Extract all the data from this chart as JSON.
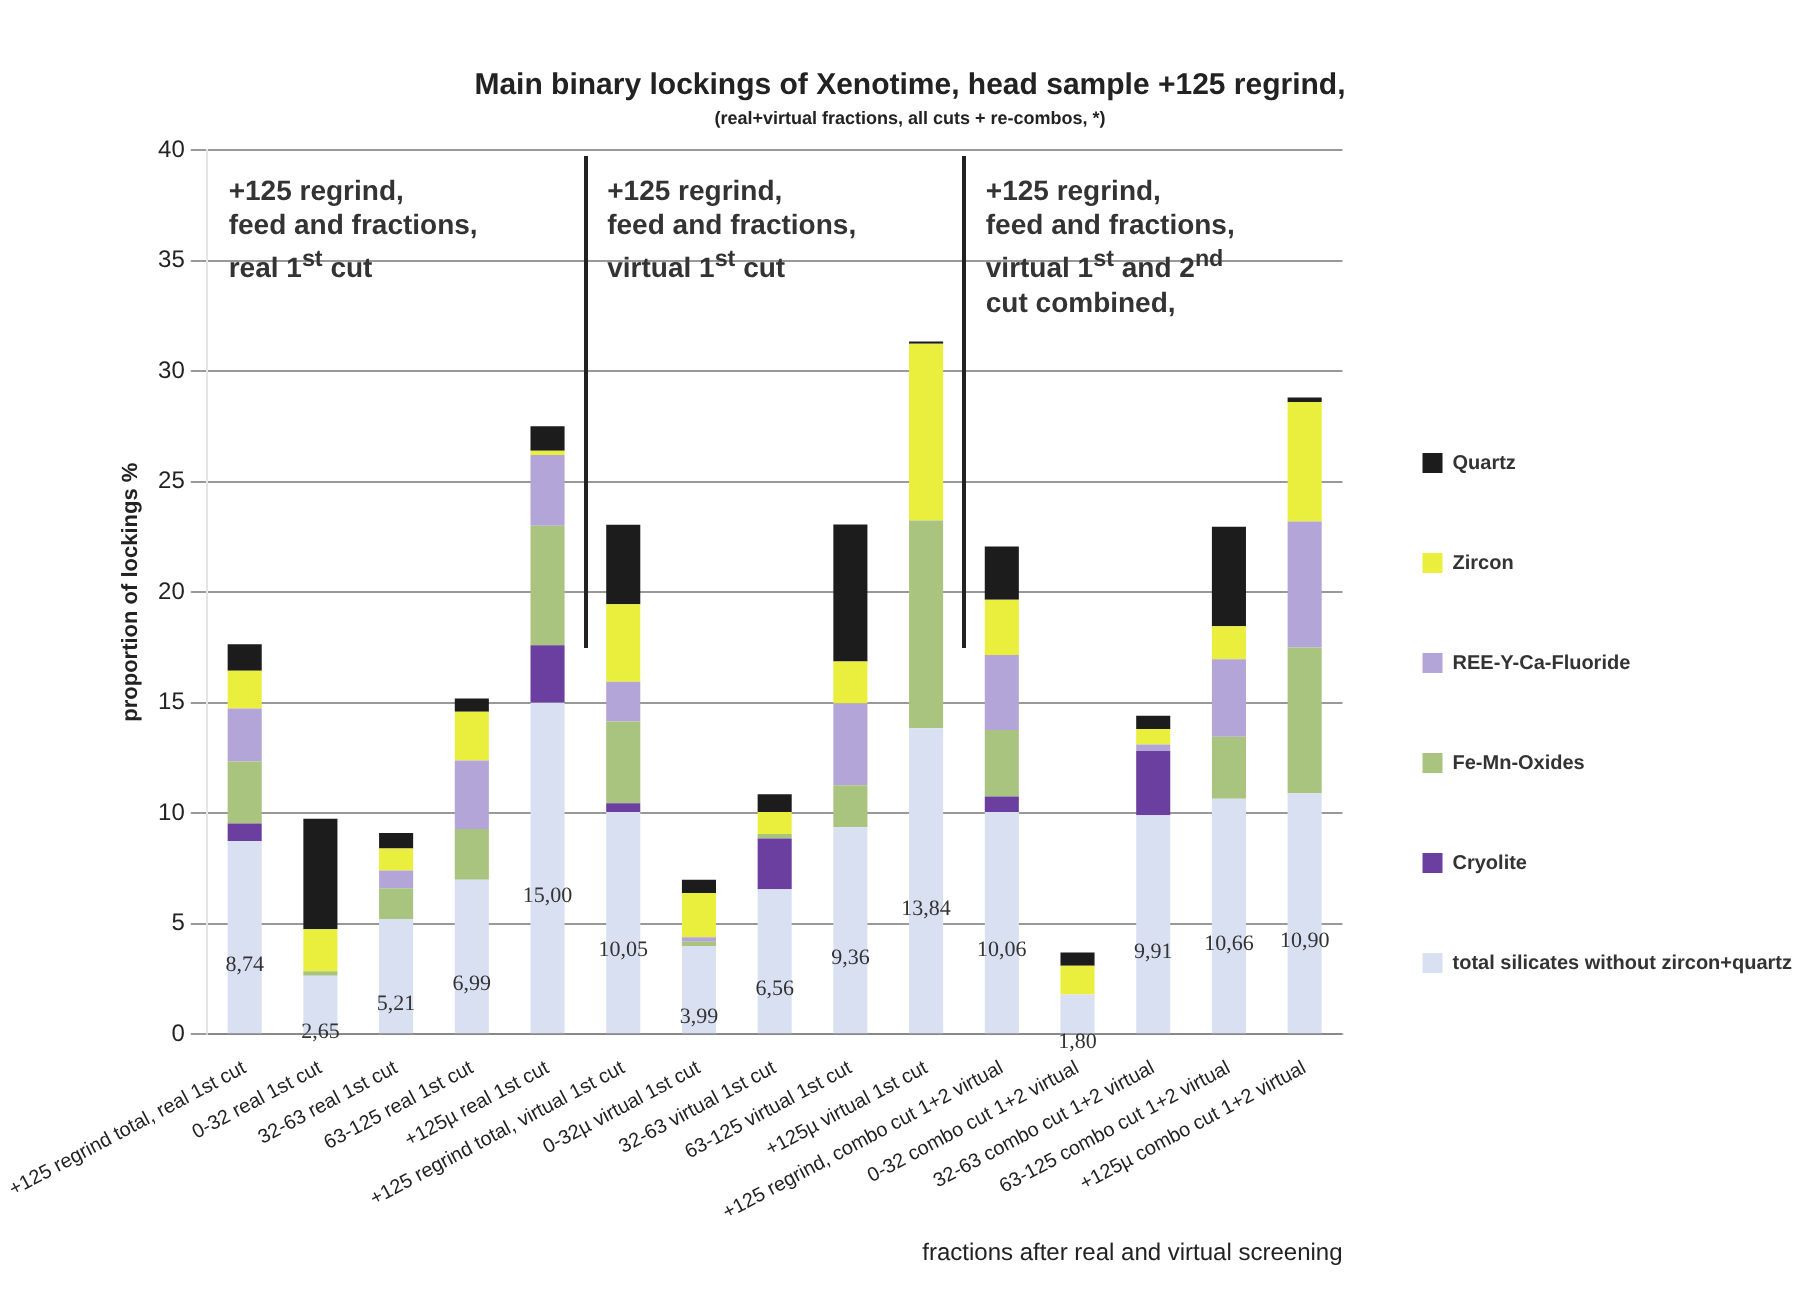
{
  "chart_data": {
    "type": "bar",
    "stacked": true,
    "title": "Main binary lockings of Xenotime, head sample +125 regrind,",
    "subtitle": "(real+virtual fractions, all cuts + re-combos, *)",
    "xlabel": "fractions after real and virtual screening",
    "ylabel": "proportion of lockings %",
    "categories": [
      "+125 regrind total, real 1st cut",
      "0-32 real 1st cut",
      "32-63 real 1st cut",
      "63-125 real 1st cut",
      "+125µ real 1st cut",
      "+125 regrind total, virtual 1st cut",
      "0-32µ virtual 1st cut",
      "32-63 virtual 1st cut",
      "63-125 virtual 1st cut",
      "+125µ virtual 1st cut",
      "+125 regrind, combo cut 1+2 virtual",
      "0-32 combo cut 1+2 virtual",
      "32-63 combo cut 1+2 virtual",
      "63-125 combo cut 1+2 virtual",
      "+125µ combo cut 1+2 virtual"
    ],
    "series": [
      {
        "name": "total silicates without zircon+quartz",
        "color": "#d9e0f2",
        "values": [
          8.74,
          2.65,
          5.21,
          6.99,
          15.0,
          10.05,
          3.99,
          6.56,
          9.36,
          13.84,
          10.06,
          1.8,
          9.91,
          10.66,
          10.9
        ],
        "value_labels": [
          "8,74",
          "2,65",
          "5,21",
          "6,99",
          "15,00",
          "10,05",
          "3,99",
          "6,56",
          "9,36",
          "13,84",
          "10,06",
          "1,80",
          "9,91",
          "10,66",
          "10,90"
        ]
      },
      {
        "name": "Cryolite",
        "color": "#6b3fa0",
        "values": [
          0.8,
          0,
          0,
          0,
          2.6,
          0.4,
          0,
          2.3,
          0,
          0,
          0.7,
          0,
          2.9,
          0,
          0
        ]
      },
      {
        "name": "Fe-Mn-Oxides",
        "color": "#a8c47e",
        "values": [
          2.8,
          0.2,
          1.4,
          2.3,
          5.4,
          3.7,
          0.2,
          0.2,
          1.9,
          9.4,
          3.0,
          0,
          0,
          2.8,
          6.6
        ]
      },
      {
        "name": "REE-Y-Ca-Fluoride",
        "color": "#b4a5d8",
        "values": [
          2.4,
          0,
          0.8,
          3.1,
          3.2,
          1.8,
          0.2,
          0,
          3.7,
          0,
          3.4,
          0,
          0.3,
          3.5,
          5.7
        ]
      },
      {
        "name": "Zircon",
        "color": "#e9ef3c",
        "values": [
          1.7,
          1.9,
          1.0,
          2.2,
          0.2,
          3.5,
          2.0,
          1.0,
          1.9,
          8.0,
          2.5,
          1.3,
          0.7,
          1.5,
          5.4
        ]
      },
      {
        "name": "Quartz",
        "color": "#1c1c1c",
        "values": [
          1.2,
          5.0,
          0.7,
          0.6,
          1.1,
          3.6,
          0.6,
          0.8,
          6.2,
          0.1,
          2.4,
          0.6,
          0.6,
          4.5,
          0.2
        ]
      }
    ],
    "ylim": [
      0,
      40
    ],
    "yticks": [
      0,
      5,
      10,
      15,
      20,
      25,
      30,
      35,
      40
    ],
    "grid": "y",
    "legend": "right",
    "annotations": [
      "+125 regrind,\nfeed and fractions,\nreal 1$^{st}$ cut",
      "+125 regrind,\nfeed and fractions,\nvirtual 1$^{st}$ cut",
      "+125 regrind,\nfeed and fractions,\nvirtual 1$^{st}$ and 2$^{nd}$\ncut combined,"
    ]
  }
}
